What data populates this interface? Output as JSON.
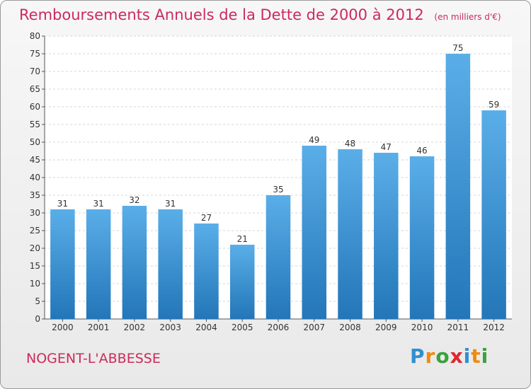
{
  "title": "Remboursements Annuels de la Dette de 2000 à 2012",
  "subtitle": "(en milliers d'€)",
  "commune": "NOGENT-L'ABBESSE",
  "logo": {
    "letters": [
      "P",
      "r",
      "o",
      "x",
      "i",
      "t",
      "i"
    ],
    "colors": [
      "#2e8fd3",
      "#f08a12",
      "#3aa23a",
      "#e0262e",
      "#2e8fd3",
      "#f08a12",
      "#3aa23a"
    ]
  },
  "chart_data": {
    "type": "bar",
    "categories": [
      "2000",
      "2001",
      "2002",
      "2003",
      "2004",
      "2005",
      "2006",
      "2007",
      "2008",
      "2009",
      "2010",
      "2011",
      "2012"
    ],
    "values": [
      31,
      31,
      32,
      31,
      27,
      21,
      35,
      49,
      48,
      47,
      46,
      75,
      59
    ],
    "ylim": [
      0,
      80
    ],
    "yticks": [
      0,
      5,
      10,
      15,
      20,
      25,
      30,
      35,
      40,
      45,
      50,
      55,
      60,
      65,
      70,
      75,
      80
    ],
    "grid": true,
    "bar_color_top": "#5aaee8",
    "bar_color_bottom": "#2376b8"
  }
}
